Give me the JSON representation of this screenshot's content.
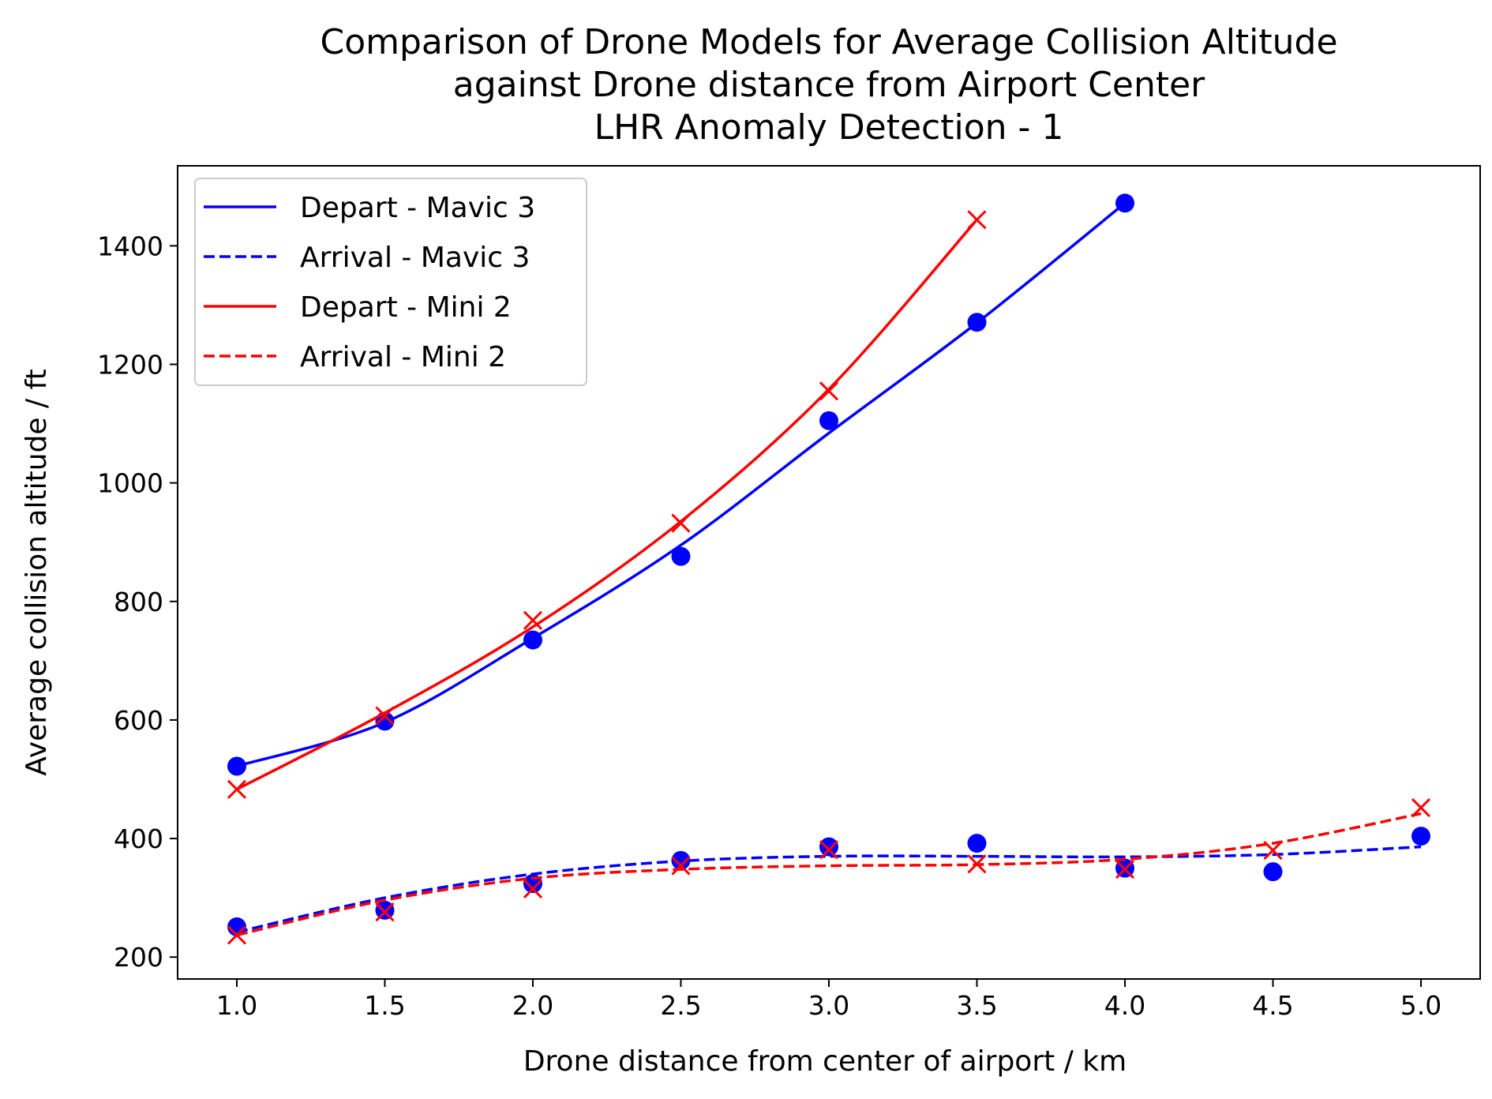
{
  "chart_data": {
    "type": "line",
    "title_lines": [
      "Comparison of Drone Models for Average Collision Altitude",
      "against Drone distance from Airport Center",
      "LHR Anomaly Detection - 1"
    ],
    "xlabel": "Drone distance from center of airport / km",
    "ylabel": "Average collision altitude / ft",
    "xlim": [
      0.8,
      5.2
    ],
    "ylim": [
      163,
      1535
    ],
    "xticks": [
      1.0,
      1.5,
      2.0,
      2.5,
      3.0,
      3.5,
      4.0,
      4.5,
      5.0
    ],
    "xtick_labels": [
      "1.0",
      "1.5",
      "2.0",
      "2.5",
      "3.0",
      "3.5",
      "4.0",
      "4.5",
      "5.0"
    ],
    "yticks": [
      200,
      400,
      600,
      800,
      1000,
      1200,
      1400
    ],
    "ytick_labels": [
      "200",
      "400",
      "600",
      "800",
      "1000",
      "1200",
      "1400"
    ],
    "grid": false,
    "legend_position": "top-left",
    "series": [
      {
        "name": "Depart - Mavic 3",
        "color": "#0000ff",
        "line_style": "solid",
        "marker": "circle",
        "x": [
          1.0,
          1.5,
          2.0,
          2.5,
          3.0,
          3.5,
          4.0
        ],
        "points": [
          522,
          598,
          735,
          876,
          1105,
          1271,
          1472
        ],
        "fit": [
          522,
          596,
          738,
          895,
          1084,
          1270,
          1472
        ]
      },
      {
        "name": "Arrival - Mavic 3",
        "color": "#0000ff",
        "line_style": "dashed",
        "marker": "circle",
        "x": [
          1.0,
          1.5,
          2.0,
          2.5,
          3.0,
          3.5,
          4.0,
          4.5,
          5.0
        ],
        "points": [
          251,
          279,
          324,
          363,
          386,
          392,
          350,
          344,
          404
        ],
        "fit": [
          242,
          300,
          340,
          362,
          370,
          370,
          369,
          373,
          386
        ]
      },
      {
        "name": "Depart - Mini 2",
        "color": "#ff0000",
        "line_style": "solid",
        "marker": "x",
        "x": [
          1.0,
          1.5,
          2.0,
          2.5,
          3.0,
          3.5
        ],
        "points": [
          483,
          607,
          768,
          932,
          1155,
          1444
        ],
        "fit": [
          483,
          612,
          757,
          935,
          1158,
          1444
        ]
      },
      {
        "name": "Arrival - Mini 2",
        "color": "#ff0000",
        "line_style": "dashed",
        "marker": "x",
        "x": [
          1.0,
          1.5,
          2.0,
          2.5,
          3.0,
          3.5,
          4.0,
          4.5,
          5.0
        ],
        "points": [
          237,
          276,
          315,
          354,
          381,
          357,
          348,
          380,
          452
        ],
        "fit": [
          237,
          296,
          333,
          348,
          354,
          356,
          365,
          392,
          442
        ]
      }
    ]
  }
}
